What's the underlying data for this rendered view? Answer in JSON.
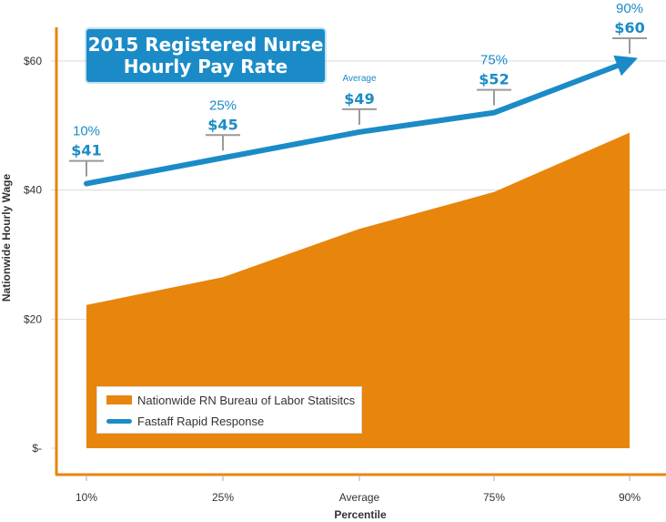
{
  "title": {
    "line1": "2015 Registered Nurse",
    "line2": "Hourly Pay Rate"
  },
  "colors": {
    "area": "#e8850c",
    "line": "#1b8bc7",
    "axis": "#e8850c",
    "grid": "#d9d9d9",
    "callout_bracket": "#9a9a9a"
  },
  "chart_data": {
    "type": "area",
    "title": "2015 Registered Nurse Hourly Pay Rate",
    "xlabel": "Percentile",
    "ylabel": "Nationwide Hourly Wage",
    "categories": [
      "10%",
      "25%",
      "Average",
      "75%",
      "90%"
    ],
    "y_ticks": [
      {
        "value": 0,
        "label": "$-"
      },
      {
        "value": 20,
        "label": "$20"
      },
      {
        "value": 40,
        "label": "$40"
      },
      {
        "value": 60,
        "label": "$60"
      }
    ],
    "ylim": [
      0,
      66
    ],
    "grid": true,
    "legend_position": "bottom-left",
    "series": [
      {
        "name": "Nationwide RN Bureau of Labor Statisitcs",
        "type": "area",
        "values": [
          22.2,
          26.5,
          34,
          39.7,
          48.9
        ]
      },
      {
        "name": "Fastaff Rapid Response",
        "type": "line",
        "values": [
          41,
          45,
          49,
          52,
          60
        ]
      }
    ],
    "annotations": [
      {
        "category": "10%",
        "label": "10%",
        "value_label": "$41"
      },
      {
        "category": "25%",
        "label": "25%",
        "value_label": "$45"
      },
      {
        "category": "Average",
        "label": "Average",
        "value_label": "$49"
      },
      {
        "category": "75%",
        "label": "75%",
        "value_label": "$52"
      },
      {
        "category": "90%",
        "label": "90%",
        "value_label": "$60"
      }
    ]
  }
}
